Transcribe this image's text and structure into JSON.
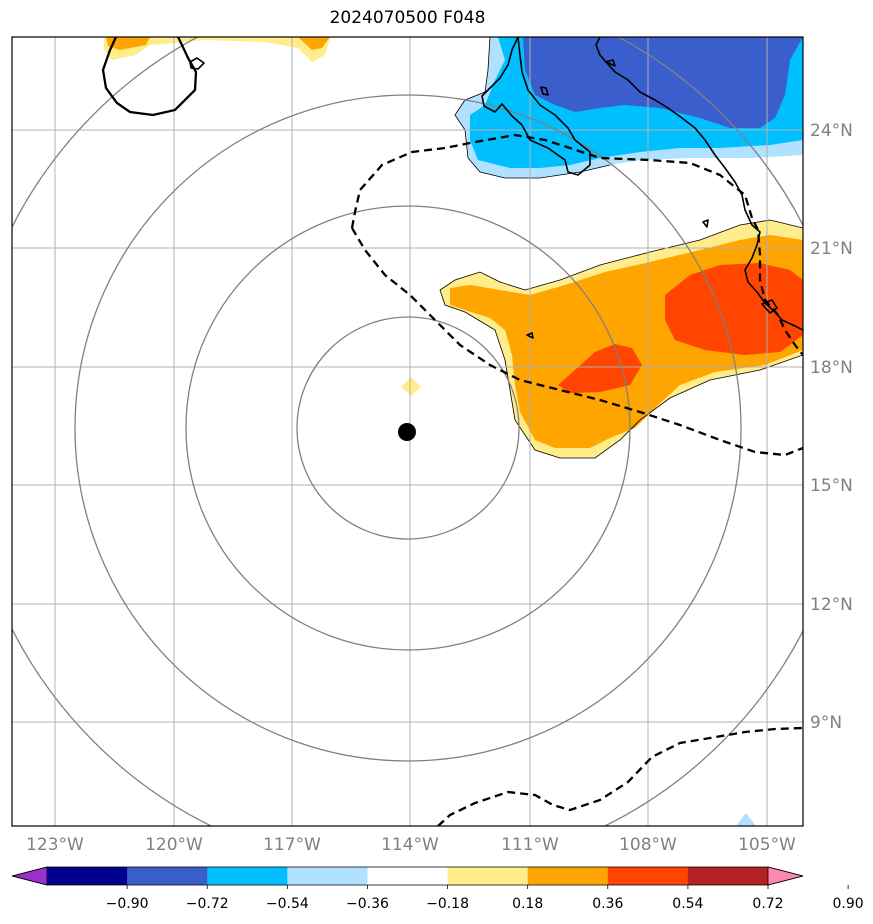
{
  "title": "2024070500 F048",
  "map": {
    "lon_ticks": [
      {
        "value": -123,
        "label": "123°W"
      },
      {
        "value": -120,
        "label": "120°W"
      },
      {
        "value": -117,
        "label": "117°W"
      },
      {
        "value": -114,
        "label": "114°W"
      },
      {
        "value": -111,
        "label": "111°W"
      },
      {
        "value": -108,
        "label": "108°W"
      },
      {
        "value": -105,
        "label": "105°W"
      }
    ],
    "lat_ticks": [
      {
        "value": 24,
        "label": "24°N"
      },
      {
        "value": 21,
        "label": "21°N"
      },
      {
        "value": 18,
        "label": "18°N"
      },
      {
        "value": 15,
        "label": "15°N"
      },
      {
        "value": 12,
        "label": "12°N"
      },
      {
        "value": 9,
        "label": "9°N"
      }
    ],
    "extent": {
      "lon_min": -124.1,
      "lon_max": -104.1,
      "lat_min": 6.0,
      "lat_max": 26.0
    },
    "center": {
      "lon": -114.0,
      "lat": 16.3
    },
    "range_rings_deg": [
      2.8,
      5.6,
      8.4,
      11.2
    ]
  },
  "colorbar": {
    "ticks": [
      "−0.90",
      "−0.72",
      "−0.54",
      "−0.36",
      "−0.18",
      "0.18",
      "0.36",
      "0.54",
      "0.72",
      "0.90"
    ],
    "colors": [
      "#9932cc",
      "#00008b",
      "#3a5fcd",
      "#00bfff",
      "#b0e2ff",
      "#ffffff",
      "#ffec8b",
      "#ffa500",
      "#ff4500",
      "#b22222",
      "#ff88b0"
    ]
  }
}
